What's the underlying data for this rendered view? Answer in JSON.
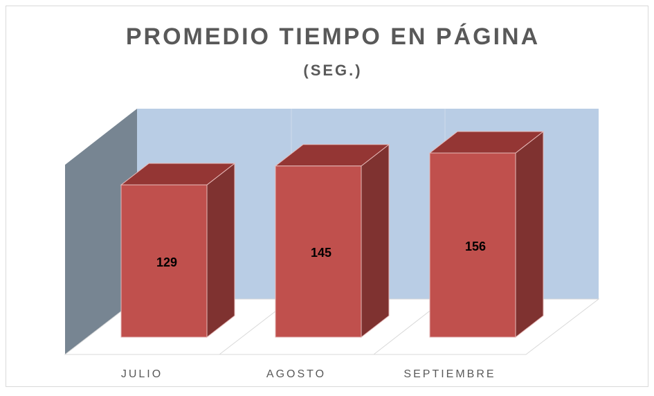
{
  "chart_data": {
    "type": "bar3d",
    "title": "PROMEDIO TIEMPO EN PÁGINA",
    "subtitle": "(SEG.)",
    "categories": [
      "JULIO",
      "AGOSTO",
      "SEPTIEMBRE"
    ],
    "values": [
      129,
      145,
      156
    ],
    "color": "#c0504d"
  }
}
